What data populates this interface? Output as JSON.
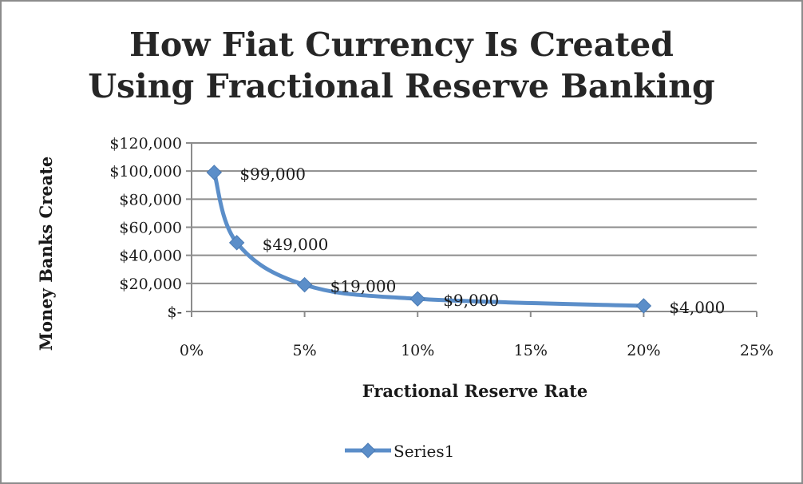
{
  "chart_data": {
    "type": "line",
    "title": [
      "How Fiat Currency Is Created",
      "Using Fractional Reserve Banking"
    ],
    "xlabel": "Fractional Reserve Rate",
    "ylabel": "Money Banks Create",
    "x": [
      0.01,
      0.02,
      0.05,
      0.1,
      0.2
    ],
    "series": [
      {
        "name": "Series1",
        "values": [
          99000,
          49000,
          19000,
          9000,
          4000
        ],
        "data_labels": [
          "$99,000",
          "$49,000",
          "$19,000",
          "$9,000",
          "$4,000"
        ],
        "color": "#5b8ec9",
        "marker": "diamond"
      }
    ],
    "xlim": [
      0,
      0.25
    ],
    "ylim": [
      0,
      120000
    ],
    "xticks": [
      0,
      0.05,
      0.1,
      0.15,
      0.2,
      0.25
    ],
    "xtick_labels": [
      "0%",
      "5%",
      "10%",
      "15%",
      "20%",
      "25%"
    ],
    "yticks": [
      0,
      20000,
      40000,
      60000,
      80000,
      100000,
      120000
    ],
    "ytick_labels": [
      "$-",
      "$20,000",
      "$40,000",
      "$60,000",
      "$80,000",
      "$100,000",
      "$120,000"
    ],
    "grid": "horizontal",
    "smooth": true,
    "legend": {
      "position": "bottom",
      "entries": [
        "Series1"
      ]
    }
  }
}
